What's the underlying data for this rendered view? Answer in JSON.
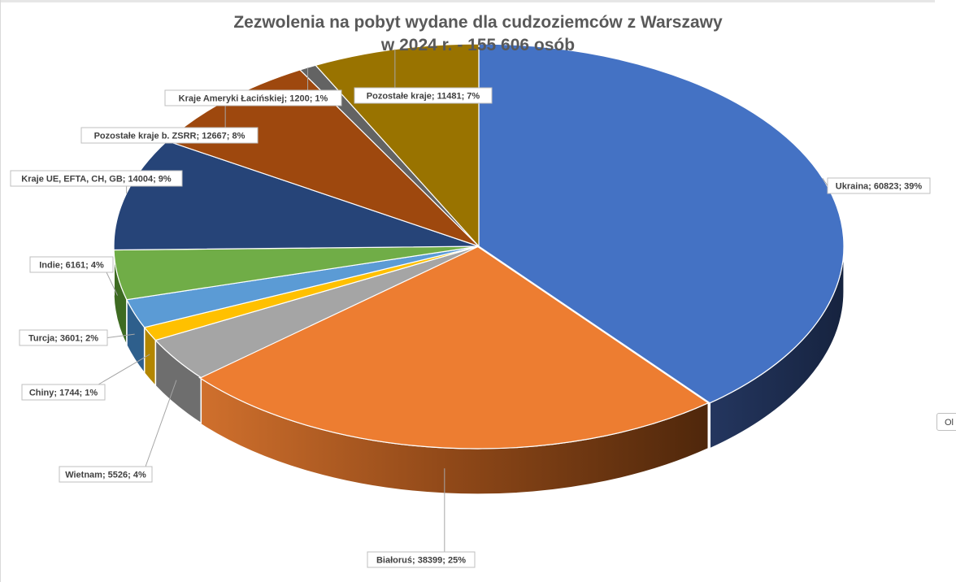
{
  "chart_data": {
    "type": "pie",
    "variant": "3d-exploded-separated",
    "title": [
      "Zezwolenia na pobyt wydane dla cudzoziemców z Warszawy",
      "w 2024 r. - 155 606 osób"
    ],
    "total": 155606,
    "slices": [
      {
        "label": "Ukraina; 60823; 39%",
        "name": "Ukraina",
        "value": 60823,
        "percent": 39,
        "color": "#4472c4",
        "side_color": "#1b2b4f"
      },
      {
        "label": "Białoruś; 38399; 25%",
        "name": "Białoruś",
        "value": 38399,
        "percent": 25,
        "color": "#ed7d31",
        "side_color": "#7a3d14"
      },
      {
        "label": "Wietnam; 5526; 4%",
        "name": "Wietnam",
        "value": 5526,
        "percent": 4,
        "color": "#a5a5a5",
        "side_color": "#6e6e6e"
      },
      {
        "label": "Chiny; 1744; 1%",
        "name": "Chiny",
        "value": 1744,
        "percent": 1,
        "color": "#ffc000",
        "side_color": "#b38600"
      },
      {
        "label": "Turcja; 3601; 2%",
        "name": "Turcja",
        "value": 3601,
        "percent": 2,
        "color": "#5b9bd5",
        "side_color": "#2e5f8c"
      },
      {
        "label": "Indie; 6161; 4%",
        "name": "Indie",
        "value": 6161,
        "percent": 4,
        "color": "#70ad47",
        "side_color": "#3e6b22"
      },
      {
        "label": "Kraje UE, EFTA, CH, GB; 14004; 9%",
        "name": "Kraje UE, EFTA, CH, GB",
        "value": 14004,
        "percent": 9,
        "color": "#264478",
        "side_color": "#142642"
      },
      {
        "label": "Pozostałe kraje b. ZSRR; 12667; 8%",
        "name": "Pozostałe kraje b. ZSRR",
        "value": 12667,
        "percent": 8,
        "color": "#9e480e",
        "side_color": "#5a2606"
      },
      {
        "label": "Kraje Ameryki Łacińskiej; 1200; 1%",
        "name": "Kraje Ameryki Łacińskiej",
        "value": 1200,
        "percent": 1,
        "color": "#636363",
        "side_color": "#333333"
      },
      {
        "label": "Pozostałe kraje; 11481; 7%",
        "name": "Pozostałe kraje",
        "value": 11481,
        "percent": 7,
        "color": "#997300",
        "side_color": "#5a4400"
      }
    ],
    "legend": "none",
    "data_labels": "callouts with leader lines"
  },
  "ui": {
    "edge_tab_text": "Ol"
  }
}
